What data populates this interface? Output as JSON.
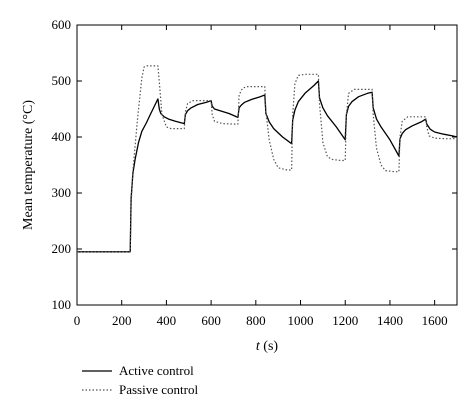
{
  "chart_data": {
    "type": "line",
    "title": "",
    "xlabel_var": "t",
    "xlabel_unit": " (s)",
    "ylabel": "Mean temperature (°C)",
    "xlim": [
      0,
      1700
    ],
    "ylim": [
      100,
      600
    ],
    "xticks": [
      0,
      200,
      400,
      600,
      800,
      1000,
      1200,
      1400,
      1600
    ],
    "yticks": [
      100,
      200,
      300,
      400,
      500,
      600
    ],
    "xtick_labels": [
      "0",
      "200",
      "400",
      "600",
      "800",
      "1000",
      "1200",
      "1400",
      "1600"
    ],
    "ytick_labels": [
      "100",
      "200",
      "300",
      "400",
      "500",
      "600"
    ],
    "grid": false,
    "legend_position": "bottom-left",
    "series": [
      {
        "name": "Active control",
        "style": "solid",
        "color": "#000000",
        "x": [
          0,
          238,
          242,
          250,
          260,
          275,
          290,
          310,
          330,
          350,
          362,
          368,
          375,
          390,
          410,
          440,
          480,
          485,
          495,
          510,
          540,
          580,
          600,
          605,
          615,
          640,
          680,
          720,
          725,
          735,
          750,
          780,
          820,
          840,
          845,
          860,
          880,
          920,
          960,
          965,
          975,
          990,
          1020,
          1060,
          1080,
          1085,
          1100,
          1120,
          1160,
          1200,
          1205,
          1215,
          1230,
          1260,
          1300,
          1320,
          1325,
          1340,
          1360,
          1400,
          1440,
          1445,
          1455,
          1470,
          1500,
          1540,
          1560,
          1565,
          1580,
          1600,
          1640,
          1680,
          1700
        ],
        "y": [
          195,
          195,
          290,
          335,
          360,
          390,
          410,
          425,
          442,
          458,
          468,
          450,
          442,
          436,
          432,
          428,
          424,
          440,
          447,
          452,
          458,
          462,
          465,
          455,
          450,
          447,
          442,
          435,
          452,
          457,
          462,
          467,
          472,
          475,
          442,
          427,
          415,
          400,
          388,
          430,
          448,
          463,
          478,
          492,
          500,
          470,
          452,
          438,
          418,
          395,
          440,
          455,
          463,
          472,
          478,
          480,
          452,
          432,
          418,
          395,
          366,
          397,
          406,
          413,
          420,
          427,
          432,
          423,
          414,
          409,
          405,
          402,
          400
        ]
      },
      {
        "name": "Passive control",
        "style": "dotted",
        "color": "#555555",
        "x": [
          0,
          238,
          242,
          250,
          270,
          290,
          300,
          310,
          320,
          350,
          362,
          370,
          380,
          400,
          420,
          480,
          485,
          495,
          520,
          560,
          600,
          605,
          615,
          650,
          700,
          720,
          725,
          740,
          760,
          800,
          840,
          845,
          860,
          880,
          900,
          940,
          960,
          965,
          975,
          990,
          1020,
          1060,
          1080,
          1085,
          1100,
          1120,
          1140,
          1180,
          1200,
          1205,
          1215,
          1240,
          1280,
          1320,
          1325,
          1340,
          1360,
          1380,
          1420,
          1440,
          1445,
          1455,
          1480,
          1520,
          1560,
          1565,
          1575,
          1600,
          1650,
          1700
        ],
        "y": [
          195,
          195,
          280,
          340,
          430,
          505,
          525,
          527,
          527,
          527,
          527,
          490,
          440,
          418,
          415,
          415,
          445,
          460,
          465,
          465,
          465,
          440,
          428,
          424,
          423,
          423,
          475,
          487,
          490,
          490,
          490,
          445,
          395,
          360,
          345,
          341,
          341,
          440,
          495,
          510,
          512,
          512,
          512,
          460,
          390,
          365,
          360,
          358,
          358,
          440,
          478,
          485,
          485,
          485,
          440,
          380,
          350,
          340,
          338,
          338,
          400,
          428,
          436,
          436,
          436,
          418,
          402,
          398,
          397,
          397
        ]
      }
    ]
  }
}
